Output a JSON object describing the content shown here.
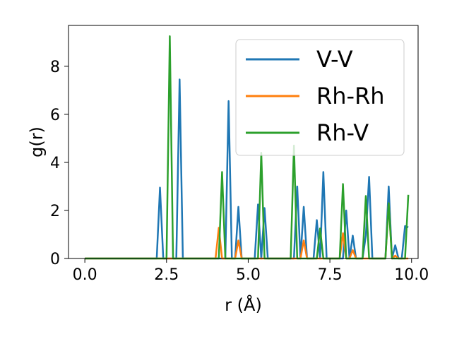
{
  "chart_data": {
    "type": "line",
    "title": "",
    "xlabel": "r (Å)",
    "ylabel": "g(r)",
    "xlim": [
      -0.5,
      10.2
    ],
    "ylim": [
      0,
      9.7
    ],
    "xticks": [
      0.0,
      2.5,
      5.0,
      7.5,
      10.0
    ],
    "xtick_labels": [
      "0.0",
      "2.5",
      "5.0",
      "7.5",
      "10.0"
    ],
    "yticks": [
      0,
      2,
      4,
      6,
      8
    ],
    "ytick_labels": [
      "0",
      "2",
      "4",
      "6",
      "8"
    ],
    "grid": false,
    "legend_position": "top-right",
    "series": [
      {
        "name": "V-V",
        "color": "#1f77b4",
        "points": [
          [
            0.0,
            0
          ],
          [
            2.2,
            0
          ],
          [
            2.3,
            2.95
          ],
          [
            2.4,
            0
          ],
          [
            2.8,
            0
          ],
          [
            2.9,
            7.45
          ],
          [
            3.0,
            0
          ],
          [
            4.3,
            0
          ],
          [
            4.4,
            6.55
          ],
          [
            4.5,
            0
          ],
          [
            4.6,
            0
          ],
          [
            4.7,
            2.15
          ],
          [
            4.8,
            0
          ],
          [
            5.2,
            0
          ],
          [
            5.3,
            2.25
          ],
          [
            5.4,
            0
          ],
          [
            5.5,
            2.1
          ],
          [
            5.6,
            0
          ],
          [
            6.4,
            0
          ],
          [
            6.5,
            3.0
          ],
          [
            6.6,
            0
          ],
          [
            6.7,
            2.15
          ],
          [
            6.8,
            0
          ],
          [
            7.0,
            0
          ],
          [
            7.1,
            1.6
          ],
          [
            7.2,
            0
          ],
          [
            7.3,
            3.6
          ],
          [
            7.4,
            0
          ],
          [
            7.9,
            0
          ],
          [
            8.0,
            2.0
          ],
          [
            8.1,
            0
          ],
          [
            8.2,
            0.95
          ],
          [
            8.3,
            0
          ],
          [
            8.5,
            0
          ],
          [
            8.6,
            0.95
          ],
          [
            8.7,
            3.4
          ],
          [
            8.8,
            0
          ],
          [
            9.2,
            0
          ],
          [
            9.3,
            3.0
          ],
          [
            9.4,
            0
          ],
          [
            9.5,
            0.55
          ],
          [
            9.6,
            0
          ],
          [
            9.7,
            0
          ],
          [
            9.8,
            1.35
          ],
          [
            9.9,
            1.3
          ]
        ]
      },
      {
        "name": "Rh-Rh",
        "color": "#ff7f0e",
        "points": [
          [
            0.0,
            0
          ],
          [
            4.0,
            0
          ],
          [
            4.1,
            1.28
          ],
          [
            4.2,
            0
          ],
          [
            4.6,
            0
          ],
          [
            4.7,
            0.75
          ],
          [
            4.8,
            0
          ],
          [
            6.6,
            0
          ],
          [
            6.7,
            0.75
          ],
          [
            6.8,
            0
          ],
          [
            7.8,
            0
          ],
          [
            7.9,
            1.05
          ],
          [
            8.0,
            0
          ],
          [
            8.1,
            0
          ],
          [
            8.2,
            0.35
          ],
          [
            8.3,
            0
          ],
          [
            9.2,
            0
          ],
          [
            9.3,
            2.3
          ],
          [
            9.4,
            0
          ],
          [
            9.5,
            0.12
          ],
          [
            9.6,
            0
          ],
          [
            9.9,
            0
          ]
        ]
      },
      {
        "name": "Rh-V",
        "color": "#2ca02c",
        "points": [
          [
            0.0,
            0
          ],
          [
            2.5,
            0
          ],
          [
            2.6,
            9.25
          ],
          [
            2.7,
            0
          ],
          [
            4.1,
            0
          ],
          [
            4.2,
            3.6
          ],
          [
            4.3,
            0
          ],
          [
            5.3,
            0
          ],
          [
            5.4,
            4.4
          ],
          [
            5.5,
            0
          ],
          [
            6.3,
            0
          ],
          [
            6.4,
            4.7
          ],
          [
            6.5,
            0
          ],
          [
            7.1,
            0
          ],
          [
            7.2,
            1.25
          ],
          [
            7.3,
            0
          ],
          [
            7.8,
            0
          ],
          [
            7.9,
            3.1
          ],
          [
            8.0,
            0
          ],
          [
            8.5,
            0
          ],
          [
            8.6,
            2.6
          ],
          [
            8.7,
            0
          ],
          [
            9.2,
            0
          ],
          [
            9.3,
            2.3
          ],
          [
            9.4,
            0
          ],
          [
            9.8,
            0
          ],
          [
            9.9,
            2.65
          ]
        ]
      }
    ]
  }
}
